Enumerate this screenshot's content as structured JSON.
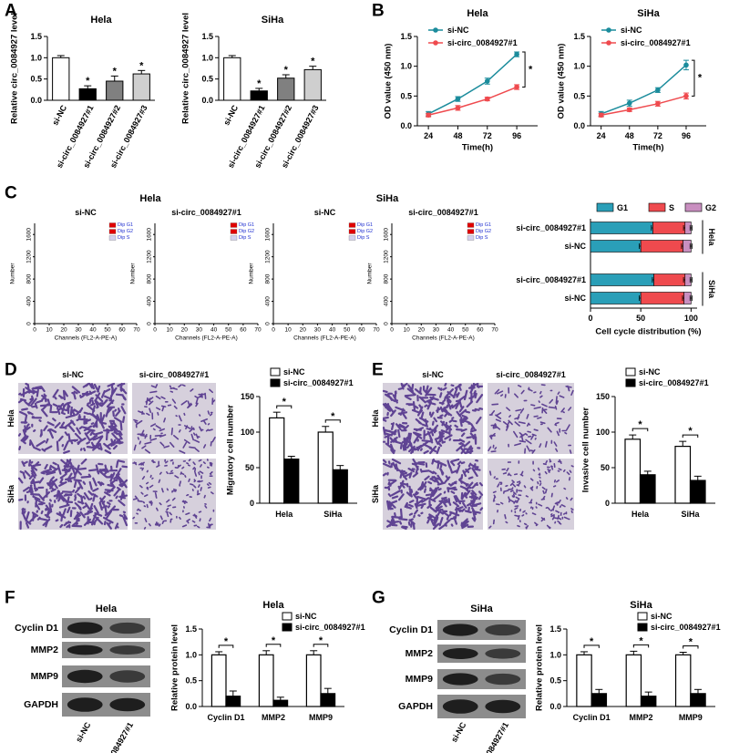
{
  "panel_labels": [
    "A",
    "B",
    "C",
    "D",
    "E",
    "F",
    "G"
  ],
  "chart_data": [
    {
      "type": "bar",
      "title": "Hela",
      "ylabel": "Relative circ_0084927 level",
      "categories": [
        "si-NC",
        "si-circ_0084927#1",
        "si-circ_0084927#2",
        "si-circ_0084927#3"
      ],
      "values": [
        1.0,
        0.27,
        0.45,
        0.62
      ],
      "errors": [
        0.05,
        0.07,
        0.12,
        0.08
      ],
      "colors": [
        "#ffffff",
        "#000000",
        "#808080",
        "#cfcfcf"
      ],
      "significance": [
        null,
        "*",
        "*",
        "*"
      ],
      "ylim": [
        0,
        1.5
      ],
      "yticks": [
        {
          "value": 0,
          "label": "0.0"
        },
        0.5,
        {
          "value": 1,
          "label": "1.0"
        },
        1.5
      ]
    },
    {
      "type": "bar",
      "title": "SiHa",
      "ylabel": "Relative circ_0084927 level",
      "categories": [
        "si-NC",
        "si-circ_0084927#1",
        "si-circ_0084927#2",
        "si-circ_0084927#3"
      ],
      "values": [
        1.0,
        0.22,
        0.52,
        0.72
      ],
      "errors": [
        0.05,
        0.06,
        0.08,
        0.08
      ],
      "colors": [
        "#ffffff",
        "#000000",
        "#808080",
        "#cfcfcf"
      ],
      "significance": [
        null,
        "*",
        "*",
        "*"
      ],
      "ylim": [
        0,
        1.5
      ],
      "yticks": [
        {
          "value": 0,
          "label": "0.0"
        },
        0.5,
        {
          "value": 1,
          "label": "1.0"
        },
        1.5
      ]
    },
    {
      "type": "line",
      "title": "Hela",
      "xlabel": "Time(h)",
      "ylabel": "OD value (450 nm)",
      "x": [
        24,
        48,
        72,
        96
      ],
      "xlim": [
        15,
        113
      ],
      "xticks": [
        24,
        48,
        72,
        96
      ],
      "ylim": [
        0,
        1.5
      ],
      "yticks": [
        {
          "value": 0,
          "label": "0.0"
        },
        0.5,
        {
          "value": 1,
          "label": "1.0"
        },
        1.5
      ],
      "series": [
        {
          "name": "si-NC",
          "color": "#1b8c9c",
          "values": [
            0.2,
            0.45,
            0.75,
            1.2
          ],
          "errors": [
            0.04,
            0.04,
            0.05,
            0.04
          ]
        },
        {
          "name": "si-circ_0084927#1",
          "color": "#ef4a4e",
          "values": [
            0.18,
            0.3,
            0.45,
            0.65
          ],
          "errors": [
            0.03,
            0.04,
            0.03,
            0.04
          ]
        }
      ],
      "significance": "*"
    },
    {
      "type": "line",
      "title": "SiHa",
      "xlabel": "Time(h)",
      "ylabel": "OD value (450 nm)",
      "x": [
        24,
        48,
        72,
        96
      ],
      "xlim": [
        15,
        113
      ],
      "xticks": [
        24,
        48,
        72,
        96
      ],
      "ylim": [
        0,
        1.5
      ],
      "yticks": [
        {
          "value": 0,
          "label": "0.0"
        },
        0.5,
        {
          "value": 1,
          "label": "1.0"
        },
        1.5
      ],
      "series": [
        {
          "name": "si-NC",
          "color": "#1b8c9c",
          "values": [
            0.2,
            0.38,
            0.6,
            1.02
          ],
          "errors": [
            0.04,
            0.05,
            0.04,
            0.08
          ]
        },
        {
          "name": "si-circ_0084927#1",
          "color": "#ef4a4e",
          "values": [
            0.18,
            0.27,
            0.37,
            0.5
          ],
          "errors": [
            0.03,
            0.03,
            0.04,
            0.05
          ]
        }
      ],
      "significance": "*"
    },
    {
      "type": "flow",
      "group_title": "Hela",
      "title": "si-NC",
      "xlabel": "Channels (FL2-A-PE-A)",
      "ylabel": "Number",
      "legend": [
        "Dip G1",
        "Dip G2",
        "Dip S"
      ],
      "xlim": [
        0,
        70
      ],
      "xticks": [
        0,
        10,
        20,
        30,
        40,
        50,
        60,
        70
      ],
      "ylim": [
        0,
        1800
      ],
      "yticks": [
        0,
        400,
        800,
        1200,
        1600
      ]
    },
    {
      "type": "flow",
      "title": "si-circ_0084927#1",
      "xlabel": "Channels (FL2-A-PE-A)",
      "ylabel": "Number",
      "legend": [
        "Dip G1",
        "Dip G2",
        "Dip S"
      ],
      "xlim": [
        0,
        70
      ],
      "xticks": [
        0,
        10,
        20,
        30,
        40,
        50,
        60,
        70
      ],
      "ylim": [
        0,
        1800
      ],
      "yticks": [
        0,
        400,
        800,
        1200,
        1600
      ]
    },
    {
      "type": "flow",
      "group_title": "SiHa",
      "title": "si-NC",
      "xlabel": "Channels (FL2-A-PE-A)",
      "ylabel": "Number",
      "legend": [
        "Dip G1",
        "Dip G2",
        "Dip S"
      ],
      "xlim": [
        0,
        70
      ],
      "xticks": [
        0,
        10,
        20,
        30,
        40,
        50,
        60,
        70
      ],
      "ylim": [
        0,
        1800
      ],
      "yticks": [
        0,
        400,
        800,
        1200,
        1600
      ]
    },
    {
      "type": "flow",
      "title": "si-circ_0084927#1",
      "xlabel": "Channels (FL2-A-PE-A)",
      "ylabel": "Number",
      "legend": [
        "Dip G1",
        "Dip G2",
        "Dip S"
      ],
      "xlim": [
        0,
        70
      ],
      "xticks": [
        0,
        10,
        20,
        30,
        40,
        50,
        60,
        70
      ],
      "ylim": [
        0,
        1800
      ],
      "yticks": [
        0,
        400,
        800,
        1200,
        1600
      ]
    },
    {
      "type": "stacked_barh",
      "xlabel": "Cell cycle distribution (%)",
      "categories": [
        "si-circ_0084927#1",
        "si-NC",
        "si-circ_0084927#1",
        "si-NC"
      ],
      "groups": [
        "Hela",
        "SiHa"
      ],
      "xlim": [
        0,
        106
      ],
      "xticks": [
        0,
        50,
        100
      ],
      "series": [
        {
          "name": "G1",
          "color": "#2a9fb8",
          "values": [
            62,
            50,
            63,
            50
          ],
          "errors": [
            1.5,
            1.5,
            1.5,
            1.5
          ]
        },
        {
          "name": "S",
          "color": "#ef4a4e",
          "values": [
            32,
            42,
            31,
            43
          ],
          "errors": [
            1.5,
            1.5,
            1.5,
            1.5
          ]
        },
        {
          "name": "G2",
          "color": "#c98fc0",
          "values": [
            6,
            8,
            6,
            7
          ],
          "errors": [
            1,
            1,
            1,
            1
          ]
        }
      ]
    },
    {
      "type": "grouped_bar",
      "ylabel": "Migratory cell number",
      "categories": [
        "Hela",
        "SiHa"
      ],
      "ylim": [
        0,
        150
      ],
      "yticks": [
        0,
        50,
        100,
        150
      ],
      "significance": [
        "*",
        "*"
      ],
      "series": [
        {
          "name": "si-NC",
          "color": "#ffffff",
          "values": [
            120,
            100
          ],
          "errors": [
            8,
            8
          ]
        },
        {
          "name": "si-circ_0084927#1",
          "color": "#000000",
          "values": [
            62,
            47
          ],
          "errors": [
            4,
            6
          ]
        }
      ]
    },
    {
      "type": "grouped_bar",
      "ylabel": "Invasive cell number",
      "categories": [
        "Hela",
        "SiHa"
      ],
      "ylim": [
        0,
        150
      ],
      "yticks": [
        0,
        50,
        100,
        150
      ],
      "significance": [
        "*",
        "*"
      ],
      "series": [
        {
          "name": "si-NC",
          "color": "#ffffff",
          "values": [
            90,
            80
          ],
          "errors": [
            6,
            7
          ]
        },
        {
          "name": "si-circ_0084927#1",
          "color": "#000000",
          "values": [
            40,
            32
          ],
          "errors": [
            5,
            6
          ]
        }
      ]
    },
    {
      "type": "grouped_bar",
      "title": "Hela",
      "ylabel": "Relative protein level",
      "categories": [
        "Cyclin D1",
        "MMP2",
        "MMP9"
      ],
      "ylim": [
        0,
        1.5
      ],
      "yticks": [
        {
          "value": 0,
          "label": "0.0"
        },
        0.5,
        {
          "value": 1,
          "label": "1.0"
        },
        1.5
      ],
      "significance": [
        "*",
        "*",
        "*"
      ],
      "series": [
        {
          "name": "si-NC",
          "color": "#ffffff",
          "values": [
            1.0,
            1.0,
            1.0
          ],
          "errors": [
            0.06,
            0.08,
            0.08
          ]
        },
        {
          "name": "si-circ_0084927#1",
          "color": "#000000",
          "values": [
            0.2,
            0.12,
            0.25
          ],
          "errors": [
            0.1,
            0.06,
            0.1
          ]
        }
      ]
    },
    {
      "type": "grouped_bar",
      "title": "SiHa",
      "ylabel": "Relative protein level",
      "categories": [
        "Cyclin D1",
        "MMP2",
        "MMP9"
      ],
      "ylim": [
        0,
        1.5
      ],
      "yticks": [
        {
          "value": 0,
          "label": "0.0"
        },
        0.5,
        {
          "value": 1,
          "label": "1.0"
        },
        1.5
      ],
      "significance": [
        "*",
        "*",
        "*"
      ],
      "series": [
        {
          "name": "si-NC",
          "color": "#ffffff",
          "values": [
            1.0,
            1.0,
            1.0
          ],
          "errors": [
            0.06,
            0.07,
            0.05
          ]
        },
        {
          "name": "si-circ_0084927#1",
          "color": "#000000",
          "values": [
            0.25,
            0.2,
            0.25
          ],
          "errors": [
            0.08,
            0.08,
            0.08
          ]
        }
      ]
    }
  ],
  "micrographs": [
    {
      "columns": [
        "si-NC",
        "si-circ_0084927#1"
      ],
      "rows": [
        "Hela",
        "SiHa"
      ]
    },
    {
      "columns": [
        "si-NC",
        "si-circ_0084927#1"
      ],
      "rows": [
        "Hela",
        "SiHa"
      ]
    }
  ],
  "blots": [
    {
      "title": "Hela",
      "bands": [
        "Cyclin D1",
        "MMP2",
        "MMP9",
        "GAPDH"
      ],
      "lanes": [
        "si-NC",
        "si-circ_0084927#1"
      ]
    },
    {
      "title": "SiHa",
      "bands": [
        "Cyclin D1",
        "MMP2",
        "MMP9",
        "GAPDH"
      ],
      "lanes": [
        "si-NC",
        "si-circ_0084927#1"
      ]
    }
  ]
}
